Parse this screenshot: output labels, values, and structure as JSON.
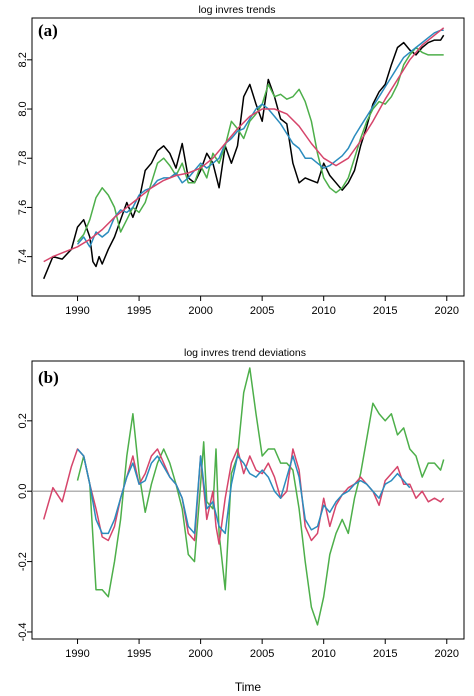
{
  "chart_data": [
    {
      "type": "line",
      "tag": "(a)",
      "title": "log invres trends",
      "xlabel": "",
      "ylabel": "",
      "xlim": [
        1986.3,
        2021.4
      ],
      "ylim": [
        7.24,
        8.37
      ],
      "x_ticks": [
        "1990",
        "1995",
        "2000",
        "2005",
        "2010",
        "2015",
        "2020"
      ],
      "y_ticks": [
        "7.4",
        "7.6",
        "7.8",
        "8.0",
        "8.2"
      ],
      "grid": false,
      "legend": "none",
      "series": [
        {
          "color": "#000000",
          "x": [
            1987.25,
            1988.0,
            1988.75,
            1989.5,
            1990.0,
            1990.5,
            1991.0,
            1991.25,
            1991.5,
            1991.75,
            1992.0,
            1992.5,
            1993.0,
            1993.5,
            1994.0,
            1994.5,
            1995.0,
            1995.5,
            1996.0,
            1996.5,
            1997.0,
            1997.5,
            1998.0,
            1998.5,
            1999.0,
            1999.5,
            2000.0,
            2000.5,
            2001.0,
            2001.5,
            2002.0,
            2002.5,
            2003.0,
            2003.5,
            2004.0,
            2004.5,
            2005.0,
            2005.5,
            2006.0,
            2006.5,
            2007.0,
            2007.5,
            2008.0,
            2008.5,
            2009.0,
            2009.5,
            2010.0,
            2010.5,
            2011.0,
            2011.5,
            2012.0,
            2012.5,
            2013.0,
            2013.5,
            2014.0,
            2014.5,
            2015.0,
            2015.5,
            2016.0,
            2016.5,
            2017.0,
            2017.5,
            2018.0,
            2018.5,
            2019.0,
            2019.5,
            2019.75
          ],
          "y": [
            7.31,
            7.4,
            7.39,
            7.43,
            7.52,
            7.55,
            7.48,
            7.38,
            7.36,
            7.4,
            7.37,
            7.43,
            7.48,
            7.55,
            7.62,
            7.56,
            7.63,
            7.75,
            7.78,
            7.83,
            7.85,
            7.82,
            7.76,
            7.86,
            7.72,
            7.7,
            7.75,
            7.82,
            7.78,
            7.68,
            7.85,
            7.78,
            7.85,
            8.05,
            8.1,
            8.02,
            7.95,
            8.12,
            8.05,
            7.96,
            7.94,
            7.78,
            7.7,
            7.72,
            7.71,
            7.7,
            7.78,
            7.73,
            7.7,
            7.67,
            7.7,
            7.75,
            7.85,
            7.93,
            8.02,
            8.07,
            8.1,
            8.18,
            8.25,
            8.27,
            8.24,
            8.22,
            8.25,
            8.27,
            8.28,
            8.28,
            8.3
          ]
        },
        {
          "color": "#4daf4a",
          "x": [
            1990.0,
            1990.5,
            1991.0,
            1991.5,
            1992.0,
            1992.5,
            1993.0,
            1993.5,
            1994.0,
            1994.5,
            1995.0,
            1995.5,
            1996.0,
            1996.5,
            1997.0,
            1997.5,
            1998.0,
            1998.5,
            1999.0,
            1999.5,
            2000.0,
            2000.5,
            2001.0,
            2001.5,
            2002.0,
            2002.5,
            2003.0,
            2003.5,
            2004.0,
            2004.5,
            2005.0,
            2005.5,
            2006.0,
            2006.5,
            2007.0,
            2007.5,
            2008.0,
            2008.5,
            2009.0,
            2009.5,
            2010.0,
            2010.5,
            2011.0,
            2011.5,
            2012.0,
            2012.5,
            2013.0,
            2013.5,
            2014.0,
            2014.5,
            2015.0,
            2015.5,
            2016.0,
            2016.5,
            2017.0,
            2017.5,
            2018.0,
            2018.5,
            2019.0,
            2019.5,
            2019.75
          ],
          "y": [
            7.46,
            7.49,
            7.55,
            7.64,
            7.68,
            7.65,
            7.6,
            7.5,
            7.55,
            7.6,
            7.58,
            7.62,
            7.7,
            7.78,
            7.8,
            7.77,
            7.73,
            7.78,
            7.7,
            7.7,
            7.77,
            7.72,
            7.82,
            7.78,
            7.85,
            7.95,
            7.92,
            7.88,
            7.95,
            7.98,
            8.02,
            8.1,
            8.05,
            8.06,
            8.04,
            8.05,
            8.08,
            8.03,
            7.95,
            7.82,
            7.72,
            7.68,
            7.66,
            7.68,
            7.72,
            7.8,
            7.88,
            7.95,
            8.0,
            8.03,
            8.02,
            8.05,
            8.1,
            8.18,
            8.22,
            8.25,
            8.23,
            8.22,
            8.22,
            8.22,
            8.22
          ]
        },
        {
          "color": "#2b8cbe",
          "x": [
            1990.0,
            1990.5,
            1991.0,
            1991.5,
            1992.0,
            1992.5,
            1993.0,
            1993.5,
            1994.0,
            1994.5,
            1995.0,
            1995.5,
            1996.0,
            1996.5,
            1997.0,
            1997.5,
            1998.0,
            1998.5,
            1999.0,
            1999.5,
            2000.0,
            2000.5,
            2001.0,
            2001.5,
            2002.0,
            2002.5,
            2003.0,
            2003.5,
            2004.0,
            2004.5,
            2005.0,
            2005.5,
            2006.0,
            2006.5,
            2007.0,
            2007.5,
            2008.0,
            2008.5,
            2009.0,
            2009.5,
            2010.0,
            2010.5,
            2011.0,
            2011.5,
            2012.0,
            2012.5,
            2013.0,
            2013.5,
            2014.0,
            2014.5,
            2015.0,
            2015.5,
            2016.0,
            2016.5,
            2017.0,
            2017.5,
            2018.0,
            2018.5,
            2019.0,
            2019.5,
            2019.75
          ],
          "y": [
            7.45,
            7.48,
            7.44,
            7.5,
            7.48,
            7.5,
            7.56,
            7.59,
            7.58,
            7.6,
            7.65,
            7.67,
            7.68,
            7.71,
            7.72,
            7.72,
            7.74,
            7.7,
            7.72,
            7.75,
            7.78,
            7.76,
            7.78,
            7.8,
            7.86,
            7.88,
            7.91,
            7.92,
            7.96,
            8.0,
            8.02,
            8.0,
            7.97,
            7.94,
            7.9,
            7.86,
            7.84,
            7.8,
            7.8,
            7.78,
            7.76,
            7.77,
            7.79,
            7.81,
            7.84,
            7.89,
            7.93,
            7.97,
            8.01,
            8.05,
            8.09,
            8.13,
            8.17,
            8.21,
            8.23,
            8.25,
            8.27,
            8.29,
            8.31,
            8.32,
            8.32
          ]
        },
        {
          "color": "#d6456b",
          "x": [
            1987.25,
            1988.0,
            1989.0,
            1990.0,
            1991.0,
            1992.0,
            1993.0,
            1994.0,
            1995.0,
            1996.0,
            1997.0,
            1998.0,
            1999.0,
            2000.0,
            2001.0,
            2002.0,
            2003.0,
            2004.0,
            2005.0,
            2006.0,
            2007.0,
            2008.0,
            2009.0,
            2010.0,
            2011.0,
            2012.0,
            2013.0,
            2014.0,
            2015.0,
            2016.0,
            2017.0,
            2018.0,
            2019.0,
            2019.75
          ],
          "y": [
            7.38,
            7.4,
            7.42,
            7.44,
            7.47,
            7.51,
            7.56,
            7.6,
            7.64,
            7.68,
            7.71,
            7.73,
            7.74,
            7.76,
            7.8,
            7.86,
            7.92,
            7.97,
            8.0,
            8.0,
            7.98,
            7.93,
            7.86,
            7.8,
            7.77,
            7.8,
            7.87,
            7.95,
            8.04,
            8.12,
            8.2,
            8.26,
            8.3,
            8.33
          ]
        }
      ]
    },
    {
      "type": "line",
      "tag": "(b)",
      "title": "log invres trend deviations",
      "xlabel": "Time",
      "ylabel": "",
      "xlim": [
        1986.3,
        2021.4
      ],
      "ylim": [
        -0.42,
        0.37
      ],
      "x_ticks": [
        "1990",
        "1995",
        "2000",
        "2005",
        "2010",
        "2015",
        "2020"
      ],
      "y_ticks": [
        "-0.4",
        "-0.2",
        "0.0",
        "0.2"
      ],
      "grid": false,
      "legend": "none",
      "hline": {
        "y": 0.0,
        "color": "#9a9a9a"
      },
      "series": [
        {
          "color": "#4daf4a",
          "x": [
            1990.0,
            1990.5,
            1991.0,
            1991.5,
            1992.0,
            1992.5,
            1993.0,
            1993.5,
            1994.0,
            1994.5,
            1995.0,
            1995.5,
            1996.0,
            1996.5,
            1997.0,
            1997.5,
            1998.0,
            1998.5,
            1999.0,
            1999.5,
            2000.0,
            2000.25,
            2000.5,
            2001.0,
            2001.25,
            2001.5,
            2002.0,
            2002.5,
            2003.0,
            2003.5,
            2004.0,
            2004.5,
            2005.0,
            2005.5,
            2006.0,
            2006.5,
            2007.0,
            2007.5,
            2008.0,
            2008.5,
            2009.0,
            2009.5,
            2010.0,
            2010.5,
            2011.0,
            2011.5,
            2012.0,
            2012.5,
            2013.0,
            2013.5,
            2014.0,
            2014.5,
            2015.0,
            2015.5,
            2016.0,
            2016.5,
            2017.0,
            2017.5,
            2018.0,
            2018.5,
            2019.0,
            2019.5,
            2019.75
          ],
          "y": [
            0.03,
            0.1,
            0.02,
            -0.28,
            -0.28,
            -0.3,
            -0.2,
            -0.08,
            0.1,
            0.22,
            0.05,
            -0.06,
            0.02,
            0.08,
            0.12,
            0.08,
            0.02,
            -0.05,
            -0.18,
            -0.2,
            0.02,
            0.14,
            -0.03,
            -0.05,
            0.12,
            -0.12,
            -0.28,
            0.05,
            0.1,
            0.28,
            0.35,
            0.22,
            0.1,
            0.12,
            0.12,
            0.08,
            0.08,
            0.06,
            -0.05,
            -0.2,
            -0.33,
            -0.38,
            -0.3,
            -0.18,
            -0.12,
            -0.08,
            -0.12,
            -0.02,
            0.05,
            0.15,
            0.25,
            0.22,
            0.2,
            0.22,
            0.16,
            0.18,
            0.12,
            0.1,
            0.04,
            0.08,
            0.08,
            0.06,
            0.09
          ]
        },
        {
          "color": "#d6456b",
          "x": [
            1987.25,
            1988.0,
            1988.75,
            1989.5,
            1990.0,
            1990.5,
            1991.0,
            1991.5,
            1992.0,
            1992.5,
            1993.0,
            1993.5,
            1994.0,
            1994.5,
            1995.0,
            1995.5,
            1996.0,
            1996.5,
            1997.0,
            1997.5,
            1998.0,
            1998.5,
            1999.0,
            1999.5,
            2000.0,
            2000.5,
            2001.0,
            2001.25,
            2001.5,
            2002.0,
            2002.5,
            2003.0,
            2003.5,
            2004.0,
            2004.5,
            2005.0,
            2005.5,
            2006.0,
            2006.5,
            2007.0,
            2007.5,
            2008.0,
            2008.5,
            2009.0,
            2009.5,
            2010.0,
            2010.5,
            2011.0,
            2011.5,
            2012.0,
            2012.5,
            2013.0,
            2013.5,
            2014.0,
            2014.5,
            2015.0,
            2015.5,
            2016.0,
            2016.5,
            2017.0,
            2017.5,
            2018.0,
            2018.5,
            2019.0,
            2019.5,
            2019.75
          ],
          "y": [
            -0.08,
            0.01,
            -0.03,
            0.07,
            0.12,
            0.1,
            0.02,
            -0.05,
            -0.13,
            -0.14,
            -0.1,
            -0.02,
            0.04,
            0.1,
            0.02,
            0.05,
            0.1,
            0.12,
            0.08,
            0.04,
            0.02,
            -0.02,
            -0.12,
            -0.14,
            0.1,
            -0.08,
            0.0,
            -0.1,
            -0.15,
            -0.02,
            0.08,
            0.12,
            0.05,
            0.1,
            0.06,
            0.05,
            0.08,
            0.04,
            -0.02,
            0.0,
            0.12,
            0.06,
            -0.1,
            -0.14,
            -0.12,
            -0.02,
            -0.1,
            -0.04,
            -0.01,
            0.01,
            0.02,
            0.04,
            0.02,
            0.0,
            -0.04,
            0.03,
            0.05,
            0.07,
            0.02,
            0.02,
            -0.02,
            0.0,
            -0.03,
            -0.02,
            -0.03,
            -0.02
          ]
        },
        {
          "color": "#2b8cbe",
          "x": [
            1990.0,
            1990.5,
            1991.0,
            1991.5,
            1992.0,
            1992.5,
            1993.0,
            1993.5,
            1994.0,
            1994.5,
            1995.0,
            1995.5,
            1996.0,
            1996.5,
            1997.0,
            1997.5,
            1998.0,
            1998.5,
            1999.0,
            1999.5,
            2000.0,
            2000.5,
            2001.0,
            2001.5,
            2002.0,
            2002.5,
            2003.0,
            2003.5,
            2004.0,
            2004.5,
            2005.0,
            2005.5,
            2006.0,
            2006.5,
            2007.0,
            2007.5,
            2008.0,
            2008.5,
            2009.0,
            2009.5,
            2010.0,
            2010.5,
            2011.0,
            2011.5,
            2012.0,
            2012.5,
            2013.0,
            2013.5,
            2014.0,
            2014.5,
            2015.0,
            2015.5,
            2016.0,
            2016.5,
            2017.0
          ],
          "y": [
            0.12,
            0.1,
            0.02,
            -0.08,
            -0.12,
            -0.12,
            -0.08,
            -0.02,
            0.04,
            0.08,
            0.02,
            0.03,
            0.08,
            0.1,
            0.07,
            0.04,
            0.02,
            -0.02,
            -0.1,
            -0.12,
            0.1,
            -0.05,
            -0.03,
            -0.1,
            -0.12,
            0.02,
            0.1,
            0.08,
            0.05,
            0.04,
            0.06,
            0.04,
            0.0,
            -0.02,
            0.04,
            0.1,
            0.04,
            -0.08,
            -0.11,
            -0.1,
            -0.04,
            -0.06,
            -0.03,
            -0.01,
            0.0,
            0.02,
            0.03,
            0.02,
            0.0,
            -0.02,
            0.02,
            0.03,
            0.05,
            0.03,
            0.01
          ]
        }
      ]
    }
  ]
}
